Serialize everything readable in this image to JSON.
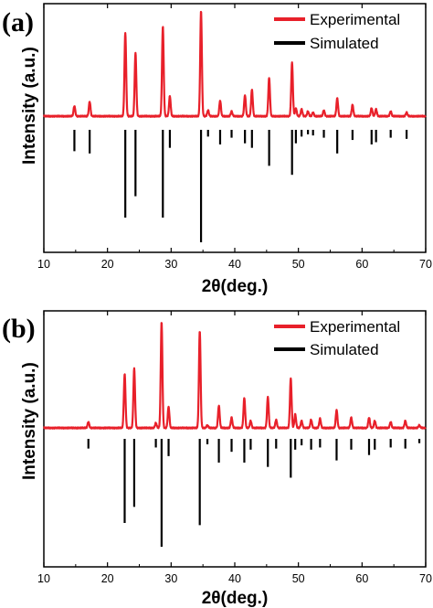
{
  "chart_data": [
    {
      "type": "line",
      "panel_label": "(a)",
      "xlabel": "2θ(deg.)",
      "ylabel": "Intensity (a.u.)",
      "xlim": [
        10,
        70
      ],
      "xticks": [
        10,
        20,
        30,
        40,
        50,
        60,
        70
      ],
      "x_tick_labels": [
        "10",
        "20",
        "30",
        "40",
        "50",
        "60",
        "70"
      ],
      "legend": {
        "position": "top-right",
        "entries": [
          "Experimental",
          "Simulated"
        ]
      },
      "colors": {
        "Experimental": "#e8202a",
        "Simulated": "#000000"
      },
      "series": [
        {
          "name": "Experimental",
          "baseline": 0.05,
          "peaks": [
            {
              "x": 14.8,
              "y": 0.12
            },
            {
              "x": 17.2,
              "y": 0.16
            },
            {
              "x": 22.8,
              "y": 0.8
            },
            {
              "x": 24.4,
              "y": 0.61
            },
            {
              "x": 28.7,
              "y": 0.86
            },
            {
              "x": 29.8,
              "y": 0.21
            },
            {
              "x": 34.7,
              "y": 1.0
            },
            {
              "x": 35.8,
              "y": 0.08
            },
            {
              "x": 37.7,
              "y": 0.17
            },
            {
              "x": 39.5,
              "y": 0.07
            },
            {
              "x": 41.6,
              "y": 0.22
            },
            {
              "x": 42.7,
              "y": 0.27
            },
            {
              "x": 45.4,
              "y": 0.38
            },
            {
              "x": 49.0,
              "y": 0.52
            },
            {
              "x": 49.6,
              "y": 0.1
            },
            {
              "x": 50.5,
              "y": 0.09
            },
            {
              "x": 51.5,
              "y": 0.07
            },
            {
              "x": 52.3,
              "y": 0.06
            },
            {
              "x": 54.0,
              "y": 0.08
            },
            {
              "x": 56.1,
              "y": 0.19
            },
            {
              "x": 58.5,
              "y": 0.13
            },
            {
              "x": 61.5,
              "y": 0.1
            },
            {
              "x": 62.2,
              "y": 0.09
            },
            {
              "x": 64.5,
              "y": 0.07
            },
            {
              "x": 67.0,
              "y": 0.06
            }
          ]
        },
        {
          "name": "Simulated",
          "sticks": [
            {
              "x": 14.8,
              "y": 0.19
            },
            {
              "x": 17.2,
              "y": 0.21
            },
            {
              "x": 22.8,
              "y": 0.78
            },
            {
              "x": 24.4,
              "y": 0.59
            },
            {
              "x": 28.7,
              "y": 0.78
            },
            {
              "x": 29.8,
              "y": 0.16
            },
            {
              "x": 34.7,
              "y": 1.0
            },
            {
              "x": 35.8,
              "y": 0.06
            },
            {
              "x": 37.7,
              "y": 0.13
            },
            {
              "x": 39.5,
              "y": 0.07
            },
            {
              "x": 41.6,
              "y": 0.12
            },
            {
              "x": 42.7,
              "y": 0.16
            },
            {
              "x": 45.4,
              "y": 0.32
            },
            {
              "x": 49.0,
              "y": 0.4
            },
            {
              "x": 49.6,
              "y": 0.12
            },
            {
              "x": 50.5,
              "y": 0.06
            },
            {
              "x": 51.5,
              "y": 0.04
            },
            {
              "x": 52.3,
              "y": 0.05
            },
            {
              "x": 54.0,
              "y": 0.07
            },
            {
              "x": 56.1,
              "y": 0.21
            },
            {
              "x": 58.5,
              "y": 0.09
            },
            {
              "x": 61.5,
              "y": 0.13
            },
            {
              "x": 62.2,
              "y": 0.11
            },
            {
              "x": 64.5,
              "y": 0.07
            },
            {
              "x": 67.0,
              "y": 0.08
            }
          ]
        }
      ]
    },
    {
      "type": "line",
      "panel_label": "(b)",
      "xlabel": "2θ(deg.)",
      "ylabel": "Intensity (a.u.)",
      "xlim": [
        10,
        70
      ],
      "xticks": [
        10,
        20,
        30,
        40,
        50,
        60,
        70
      ],
      "x_tick_labels": [
        "10",
        "20",
        "30",
        "40",
        "50",
        "60",
        "70"
      ],
      "legend": {
        "position": "top-right",
        "entries": [
          "Experimental",
          "Simulated"
        ]
      },
      "colors": {
        "Experimental": "#e8202a",
        "Simulated": "#000000"
      },
      "series": [
        {
          "name": "Experimental",
          "baseline": 0.05,
          "peaks": [
            {
              "x": 17.0,
              "y": 0.08
            },
            {
              "x": 22.7,
              "y": 0.52
            },
            {
              "x": 24.2,
              "y": 0.57
            },
            {
              "x": 27.6,
              "y": 0.07
            },
            {
              "x": 28.5,
              "y": 1.0
            },
            {
              "x": 29.6,
              "y": 0.22
            },
            {
              "x": 34.5,
              "y": 0.92
            },
            {
              "x": 35.7,
              "y": 0.05
            },
            {
              "x": 37.5,
              "y": 0.23
            },
            {
              "x": 39.5,
              "y": 0.12
            },
            {
              "x": 41.5,
              "y": 0.3
            },
            {
              "x": 42.5,
              "y": 0.09
            },
            {
              "x": 45.2,
              "y": 0.31
            },
            {
              "x": 46.5,
              "y": 0.1
            },
            {
              "x": 48.8,
              "y": 0.48
            },
            {
              "x": 49.5,
              "y": 0.15
            },
            {
              "x": 50.5,
              "y": 0.09
            },
            {
              "x": 52.0,
              "y": 0.1
            },
            {
              "x": 53.4,
              "y": 0.11
            },
            {
              "x": 56.0,
              "y": 0.19
            },
            {
              "x": 58.3,
              "y": 0.12
            },
            {
              "x": 61.1,
              "y": 0.12
            },
            {
              "x": 62.0,
              "y": 0.09
            },
            {
              "x": 64.5,
              "y": 0.08
            },
            {
              "x": 66.8,
              "y": 0.09
            },
            {
              "x": 69.0,
              "y": 0.05
            }
          ]
        },
        {
          "name": "Simulated",
          "sticks": [
            {
              "x": 17.0,
              "y": 0.09
            },
            {
              "x": 22.7,
              "y": 0.78
            },
            {
              "x": 24.2,
              "y": 0.63
            },
            {
              "x": 27.6,
              "y": 0.08
            },
            {
              "x": 28.5,
              "y": 1.0
            },
            {
              "x": 29.6,
              "y": 0.16
            },
            {
              "x": 34.5,
              "y": 0.8
            },
            {
              "x": 35.7,
              "y": 0.05
            },
            {
              "x": 37.5,
              "y": 0.22
            },
            {
              "x": 39.5,
              "y": 0.12
            },
            {
              "x": 41.5,
              "y": 0.22
            },
            {
              "x": 42.5,
              "y": 0.1
            },
            {
              "x": 45.2,
              "y": 0.26
            },
            {
              "x": 46.5,
              "y": 0.09
            },
            {
              "x": 48.8,
              "y": 0.36
            },
            {
              "x": 49.5,
              "y": 0.1
            },
            {
              "x": 50.5,
              "y": 0.06
            },
            {
              "x": 52.0,
              "y": 0.1
            },
            {
              "x": 53.4,
              "y": 0.08
            },
            {
              "x": 56.0,
              "y": 0.2
            },
            {
              "x": 58.3,
              "y": 0.1
            },
            {
              "x": 61.1,
              "y": 0.15
            },
            {
              "x": 62.0,
              "y": 0.1
            },
            {
              "x": 64.5,
              "y": 0.08
            },
            {
              "x": 66.8,
              "y": 0.09
            },
            {
              "x": 69.0,
              "y": 0.04
            }
          ]
        }
      ]
    }
  ]
}
